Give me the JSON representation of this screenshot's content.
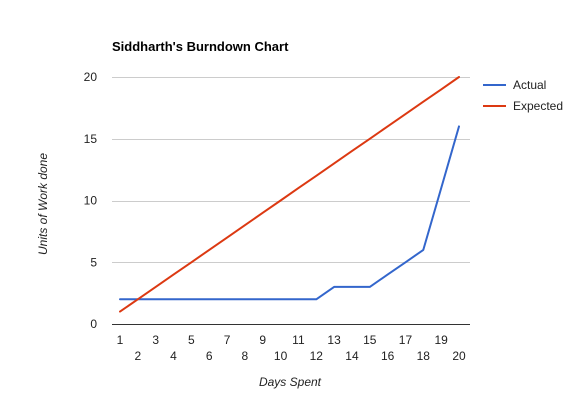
{
  "chart_data": {
    "type": "line",
    "title": "Siddharth's Burndown Chart",
    "xlabel": "Days Spent",
    "ylabel": "Units of Work done",
    "x": [
      1,
      2,
      3,
      4,
      5,
      6,
      7,
      8,
      9,
      10,
      11,
      12,
      13,
      14,
      15,
      16,
      17,
      18,
      19,
      20
    ],
    "xlim": [
      1,
      20
    ],
    "ylim": [
      0,
      20
    ],
    "yticks": [
      0,
      5,
      10,
      15,
      20
    ],
    "grid": true,
    "legend": "right",
    "series": [
      {
        "name": "Actual",
        "color": "#3366cc",
        "x": [
          1,
          2,
          3,
          4,
          5,
          6,
          7,
          8,
          9,
          10,
          11,
          12,
          13,
          14,
          15,
          16,
          17,
          18,
          19,
          20
        ],
        "values": [
          2,
          2,
          2,
          2,
          2,
          2,
          2,
          2,
          2,
          2,
          2,
          2,
          3,
          3,
          3,
          4,
          5,
          6,
          11,
          16
        ]
      },
      {
        "name": "Expected",
        "color": "#dc3912",
        "x": [
          1,
          2,
          3,
          4,
          5,
          6,
          7,
          8,
          9,
          10,
          11,
          12,
          13,
          14,
          15,
          16,
          17,
          18,
          19,
          20
        ],
        "values": [
          1,
          2,
          3,
          4,
          5,
          6,
          7,
          8,
          9,
          10,
          11,
          12,
          13,
          14,
          15,
          16,
          17,
          18,
          19,
          20
        ]
      }
    ]
  }
}
